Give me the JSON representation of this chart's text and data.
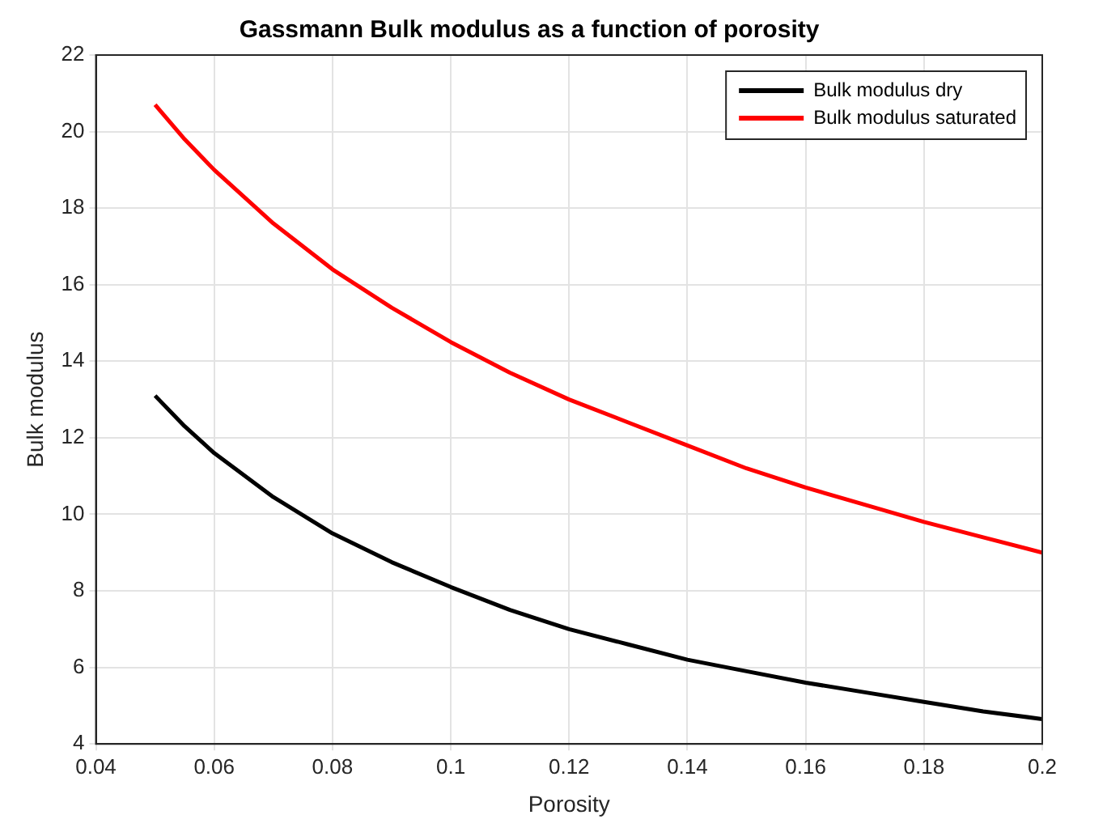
{
  "chart_data": {
    "type": "line",
    "title": "Gassmann Bulk modulus as a function of porosity",
    "xlabel": "Porosity",
    "ylabel": "Bulk modulus",
    "x": [
      0.05,
      0.055,
      0.06,
      0.07,
      0.08,
      0.09,
      0.1,
      0.11,
      0.12,
      0.13,
      0.14,
      0.15,
      0.16,
      0.17,
      0.18,
      0.19,
      0.2
    ],
    "series": [
      {
        "name": "Bulk modulus dry",
        "color": "#000000",
        "values": [
          13.1,
          12.3,
          11.6,
          10.45,
          9.5,
          8.75,
          8.1,
          7.5,
          7.0,
          6.6,
          6.2,
          5.9,
          5.6,
          5.35,
          5.1,
          4.85,
          4.65
        ]
      },
      {
        "name": "Bulk modulus saturated",
        "color": "#ff0000",
        "values": [
          20.7,
          19.8,
          19.0,
          17.6,
          16.4,
          15.4,
          14.5,
          13.7,
          13.0,
          12.4,
          11.8,
          11.2,
          10.7,
          10.25,
          9.8,
          9.4,
          9.0
        ]
      }
    ],
    "xlim": [
      0.04,
      0.2
    ],
    "xticks": [
      0.04,
      0.06,
      0.08,
      0.1,
      0.12,
      0.14,
      0.16,
      0.18,
      0.2
    ],
    "ylim": [
      4,
      22
    ],
    "yticks": [
      4,
      6,
      8,
      10,
      12,
      14,
      16,
      18,
      20,
      22
    ],
    "grid": true,
    "legend": "top right",
    "marker": "none",
    "line_style": "solid"
  }
}
